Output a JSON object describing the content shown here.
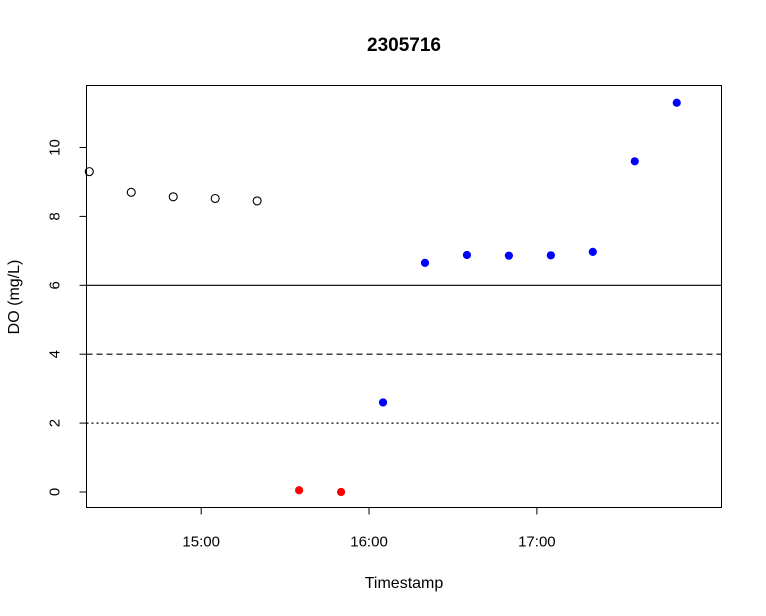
{
  "chart_data": {
    "type": "scatter",
    "title": "2305716",
    "xlabel": "Timestamp",
    "ylabel": "DO (mg/L)",
    "x_tick_labels": [
      "15:00",
      "16:00",
      "17:00"
    ],
    "y_tick_labels": [
      "0",
      "2",
      "4",
      "6",
      "8",
      "10"
    ],
    "xlim": [
      "14:19",
      "18:06"
    ],
    "ylim": [
      -0.45,
      11.8
    ],
    "grid": false,
    "reference_lines": [
      {
        "y": 6,
        "style": "solid"
      },
      {
        "y": 4,
        "style": "dashed"
      },
      {
        "y": 2,
        "style": "dotted"
      }
    ],
    "series": [
      {
        "marker": "open-circle",
        "color": "#000000",
        "points": [
          {
            "x": "14:20",
            "y": 9.3
          },
          {
            "x": "14:35",
            "y": 8.7
          },
          {
            "x": "14:50",
            "y": 8.57
          },
          {
            "x": "15:05",
            "y": 8.52
          },
          {
            "x": "15:20",
            "y": 8.45
          }
        ]
      },
      {
        "marker": "filled-circle",
        "color": "#ff0000",
        "points": [
          {
            "x": "15:35",
            "y": 0.05
          },
          {
            "x": "15:50",
            "y": 0.0
          }
        ]
      },
      {
        "marker": "filled-circle",
        "color": "#0000ff",
        "points": [
          {
            "x": "16:05",
            "y": 2.6
          },
          {
            "x": "16:20",
            "y": 6.65
          },
          {
            "x": "16:35",
            "y": 6.88
          },
          {
            "x": "16:50",
            "y": 6.86
          },
          {
            "x": "17:05",
            "y": 6.87
          },
          {
            "x": "17:20",
            "y": 6.97
          },
          {
            "x": "17:35",
            "y": 9.6
          },
          {
            "x": "17:50",
            "y": 11.3
          }
        ]
      }
    ]
  }
}
